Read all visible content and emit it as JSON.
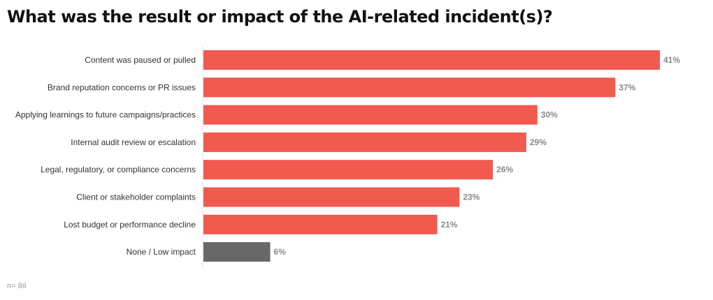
{
  "chart_data": {
    "type": "bar",
    "orientation": "horizontal",
    "title": "What was the result or impact of the AI-related incident(s)?",
    "categories": [
      "Content was paused or pulled",
      "Brand reputation concerns or PR issues",
      "Applying learnings to future campaigns/practices",
      "Internal audit review or escalation",
      "Legal, regulatory, or compliance concerns",
      "Client or stakeholder complaints",
      "Lost budget or performance decline",
      "None / Low impact"
    ],
    "values": [
      41,
      37,
      30,
      29,
      26,
      23,
      21,
      6
    ],
    "value_labels": [
      "41%",
      "37%",
      "30%",
      "29%",
      "26%",
      "23%",
      "21%",
      "6%"
    ],
    "xlim": [
      0,
      41
    ],
    "grid": false,
    "colors": {
      "primary": "#f05a4f",
      "neutral": "#686868",
      "axis": "#dddddd"
    },
    "bar_colors": [
      "primary",
      "primary",
      "primary",
      "primary",
      "primary",
      "primary",
      "primary",
      "neutral"
    ]
  },
  "footnote": "n= 86"
}
